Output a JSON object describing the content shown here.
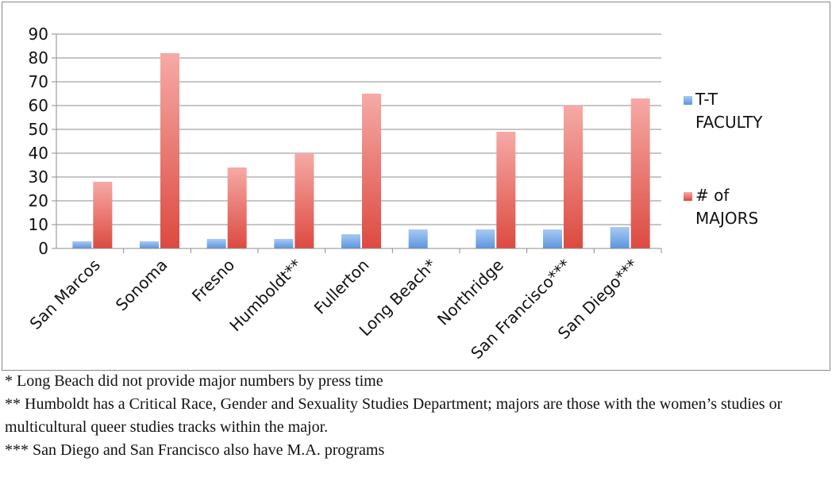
{
  "chart_data": {
    "type": "bar",
    "categories": [
      "San Marcos",
      "Sonoma",
      "Fresno",
      "Humboldt**",
      "Fullerton",
      "Long Beach*",
      "Northridge",
      "San Francisco***",
      "San Diego***"
    ],
    "series": [
      {
        "name": "T-T FACULTY",
        "values": [
          3,
          3,
          4,
          4,
          6,
          8,
          8,
          8,
          9
        ],
        "color": "#6fa3e2"
      },
      {
        "name": "# of MAJORS",
        "values": [
          28,
          82,
          34,
          40,
          65,
          null,
          49,
          60,
          63
        ],
        "color": "#e3594f"
      }
    ],
    "legend": [
      {
        "lines": [
          "T-T",
          "FACULTY"
        ]
      },
      {
        "lines": [
          "# of",
          "MAJORS"
        ]
      }
    ],
    "ylim": [
      0,
      90
    ],
    "yticks": [
      0,
      10,
      20,
      30,
      40,
      50,
      60,
      70,
      80,
      90
    ],
    "grid": true,
    "legend_position": "right"
  },
  "notes": [
    "* Long Beach did not provide major numbers by press time",
    "** Humboldt has a Critical Race, Gender and Sexuality Studies Department; majors are those with the women’s studies or multicultural queer studies tracks within the major.",
    "*** San Diego and San Francisco also have M.A. programs"
  ]
}
